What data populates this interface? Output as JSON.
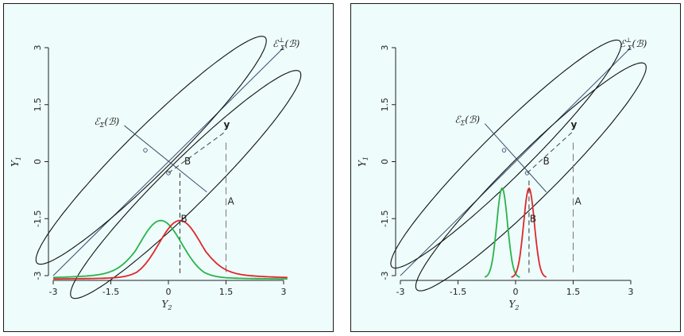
{
  "chart_data": [
    {
      "type": "line",
      "panel": "left",
      "xlabel": "Y",
      "xlabel_sub": "2",
      "ylabel": "Y",
      "ylabel_sub": "1",
      "xlim": [
        -3,
        3
      ],
      "ylim": [
        -3,
        3
      ],
      "xticks": [
        "-3",
        "-1.5",
        "0",
        "1.5",
        "3"
      ],
      "yticks": [
        "-3",
        "-1.5",
        "0",
        "1.5",
        "3"
      ],
      "grid": false,
      "ellipses": [
        {
          "center": [
            -0.45,
            0.3
          ],
          "angle_deg": 45,
          "semi_major": 4.2,
          "semi_minor": 0.6
        },
        {
          "center": [
            0.45,
            -0.6
          ],
          "angle_deg": 45,
          "semi_major": 4.2,
          "semi_minor": 0.6
        }
      ],
      "envelope_line": {
        "x": [
          -3,
          3.0
        ],
        "y": [
          -3,
          3.0
        ]
      },
      "perp_line": {
        "x": [
          -1.15,
          1.0
        ],
        "y": [
          0.95,
          -0.8
        ]
      },
      "perp_points": [
        [
          -0.6,
          0.3
        ],
        [
          0.0,
          -0.3
        ]
      ],
      "y_point": [
        1.5,
        0.8
      ],
      "dash_y_to_envelope": {
        "x": [
          0.0,
          1.5
        ],
        "y": [
          -0.3,
          0.8
        ]
      },
      "dash_A": {
        "x": [
          1.5,
          1.5
        ],
        "y": [
          0.5,
          -3.0
        ]
      },
      "dash_B": {
        "x": [
          0.3,
          0.3
        ],
        "y": [
          -0.3,
          -3.0
        ]
      },
      "series": [
        {
          "curve": "density",
          "color": "#2ab34a",
          "center": -0.2,
          "scale": 0.55,
          "tail": 0.6,
          "side": -1
        },
        {
          "curve": "density",
          "color": "#e0262a",
          "center": 0.3,
          "scale": 0.55,
          "tail": 0.6,
          "side": 1
        }
      ],
      "density_base_y": -3.1,
      "density_peak_y": -1.55,
      "labels": {
        "envelope": "ℰ⊥Σ(ℬ)",
        "envelope_main": "ℰ",
        "envelope_sup": "⊥",
        "envelope_sub": "Σ",
        "envelope_arg": "(ℬ)",
        "subspace": "ℰΣ(ℬ)",
        "subspace_main": "ℰ",
        "subspace_sub": "Σ",
        "subspace_arg": "(ℬ)",
        "y": "y",
        "B_upper": "B",
        "B_lower": "B",
        "A": "A"
      }
    },
    {
      "type": "line",
      "panel": "right",
      "xlabel": "Y",
      "xlabel_sub": "2",
      "ylabel": "Y",
      "ylabel_sub": "1",
      "xlim": [
        -3,
        3
      ],
      "ylim": [
        -3,
        3
      ],
      "xticks": [
        "-3",
        "-1.5",
        "0",
        "1.5",
        "3"
      ],
      "yticks": [
        "-3",
        "-1.5",
        "0",
        "1.5",
        "3"
      ],
      "grid": false,
      "ellipses": [
        {
          "center": [
            -0.25,
            0.2
          ],
          "angle_deg": 45,
          "semi_major": 4.2,
          "semi_minor": 0.6
        },
        {
          "center": [
            0.4,
            -0.4
          ],
          "angle_deg": 45,
          "semi_major": 4.2,
          "semi_minor": 0.6
        }
      ],
      "envelope_line": {
        "x": [
          -3,
          3.0
        ],
        "y": [
          -3,
          3.0
        ]
      },
      "perp_line": {
        "x": [
          -0.8,
          0.8
        ],
        "y": [
          1.0,
          -0.8
        ]
      },
      "perp_points": [
        [
          -0.3,
          0.3
        ],
        [
          0.3,
          -0.3
        ]
      ],
      "y_point": [
        1.5,
        0.8
      ],
      "dash_y_to_envelope": {
        "x": [
          0.3,
          1.5
        ],
        "y": [
          -0.3,
          0.8
        ]
      },
      "dash_A": {
        "x": [
          1.5,
          1.5
        ],
        "y": [
          0.5,
          -3.0
        ]
      },
      "dash_B": {
        "x": [
          0.35,
          0.35
        ],
        "y": [
          -0.5,
          -3.0
        ]
      },
      "series": [
        {
          "curve": "density",
          "color": "#2ab34a",
          "center": -0.35,
          "scale": 0.14,
          "tail": 0,
          "side": -1
        },
        {
          "curve": "density",
          "color": "#e0262a",
          "center": 0.35,
          "scale": 0.14,
          "tail": 0,
          "side": 1
        }
      ],
      "density_base_y": -3.05,
      "density_peak_y": -0.7,
      "labels": {
        "envelope": "ℰ⊥Σ(ℬ)",
        "envelope_main": "ℰ",
        "envelope_sup": "⊥",
        "envelope_sub": "Σ",
        "envelope_arg": "(ℬ)",
        "subspace": "ℰΣ(ℬ)",
        "subspace_main": "ℰ",
        "subspace_sub": "Σ",
        "subspace_arg": "(ℬ)",
        "y": "y",
        "B_upper": "B",
        "B_lower": "B",
        "A": "A"
      }
    }
  ]
}
